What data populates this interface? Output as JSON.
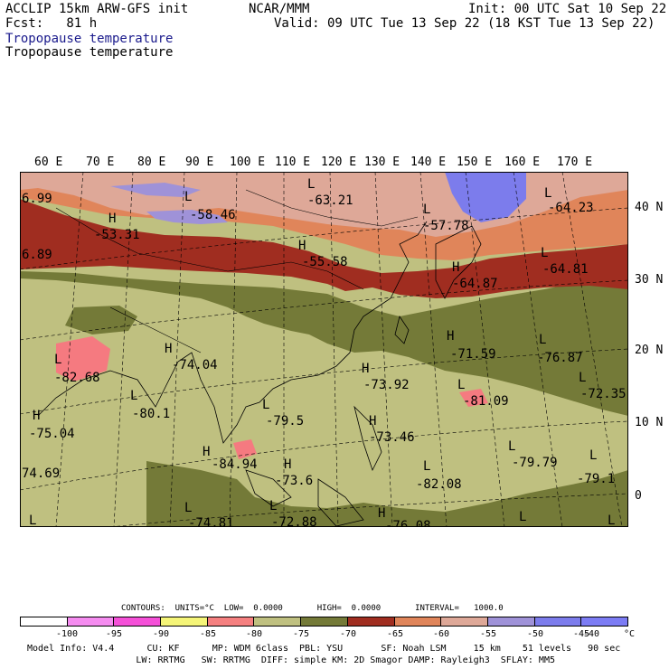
{
  "header": {
    "model": "ACCLIP 15km ARW-GFS init",
    "fcst": "Fcst:   81 h",
    "center": "NCAR/MMM",
    "init": "Init: 00 UTC Sat 10 Sep 22",
    "valid": "Valid: 09 UTC Tue 13 Sep 22 (18 KST Tue 13 Sep 22)",
    "field1": "Tropopause temperature",
    "field2": "Tropopause temperature"
  },
  "map": {
    "lon_labels": [
      "60 E",
      "70 E",
      "80 E",
      "90 E",
      "100 E",
      "110 E",
      "120 E",
      "130 E",
      "140 E",
      "150 E",
      "160 E",
      "170 E"
    ],
    "lat_labels": [
      "40 N",
      "30 N",
      "20 N",
      "10 N",
      "0"
    ],
    "colors": {
      "pale_olive": "#bfc080",
      "dark_olive": "#747a38",
      "brick": "#a02d20",
      "orange": "#e0855a",
      "pink_tan": "#dea898",
      "lavender": "#9f92d8",
      "blue_violet": "#7c7cec",
      "salmon": "#f57a80"
    },
    "marks": [
      {
        "letter": "H",
        "value": "-53.31"
      },
      {
        "letter": "L",
        "value": "-58.46"
      },
      {
        "letter": "L",
        "value": "-63.21"
      },
      {
        "letter": "L",
        "value": "-57.78"
      },
      {
        "letter": "L",
        "value": "-64.23"
      },
      {
        "letter": "H",
        "value": "-55.58"
      },
      {
        "letter": "H",
        "value": "-64.87"
      },
      {
        "letter": "L",
        "value": "-64.81"
      },
      {
        "letter": "L",
        "value": "-82.68"
      },
      {
        "letter": "H",
        "value": "-74.04"
      },
      {
        "letter": "L",
        "value": "-80.1"
      },
      {
        "letter": "H",
        "value": "-75.04"
      },
      {
        "letter": "L",
        "value": "-79.5"
      },
      {
        "letter": "H",
        "value": "-73.92"
      },
      {
        "letter": "H",
        "value": "-71.59"
      },
      {
        "letter": "L",
        "value": "-76.87"
      },
      {
        "letter": "L",
        "value": "-81.09"
      },
      {
        "letter": "L",
        "value": "-72.35"
      },
      {
        "letter": "H",
        "value": "-73.46"
      },
      {
        "letter": "H",
        "value": "-84.94"
      },
      {
        "letter": "H",
        "value": "-73.6"
      },
      {
        "letter": "L",
        "value": "-82.08"
      },
      {
        "letter": "L",
        "value": "-79.79"
      },
      {
        "letter": "L",
        "value": "-79.1"
      },
      {
        "letter": "L",
        "value": "-74.81"
      },
      {
        "letter": "L",
        "value": "-72.88"
      },
      {
        "letter": "H",
        "value": "-76.08"
      }
    ],
    "edge_labels": [
      "6.99",
      "6.89",
      "74.69"
    ]
  },
  "contours": {
    "line": "CONTOURS:  UNITS=°C  LOW=  0.0000       HIGH=  0.0000       INTERVAL=   1000.0"
  },
  "colorbar": {
    "colors": [
      "#ffffff",
      "#f58cf0",
      "#f550d8",
      "#f5f578",
      "#f58080",
      "#bfc080",
      "#747a38",
      "#a02d20",
      "#e0855a",
      "#dea898",
      "#9f92d8",
      "#7c7cec",
      "#7c7cf4"
    ],
    "ticks": [
      "-100",
      "-95",
      "-90",
      "-85",
      "-80",
      "-75",
      "-70",
      "-65",
      "-60",
      "-55",
      "-50",
      "-45",
      "-40",
      "°C"
    ]
  },
  "footer": {
    "line1": "Model Info: V4.4      CU: KF      MP: WDM 6class  PBL: YSU       SF: Noah LSM     15 km    51 levels   90 sec",
    "line2": "                    LW: RRTMG   SW: RRTMG  DIFF: simple KM: 2D Smagor DAMP: Rayleigh3  SFLAY: MM5"
  }
}
